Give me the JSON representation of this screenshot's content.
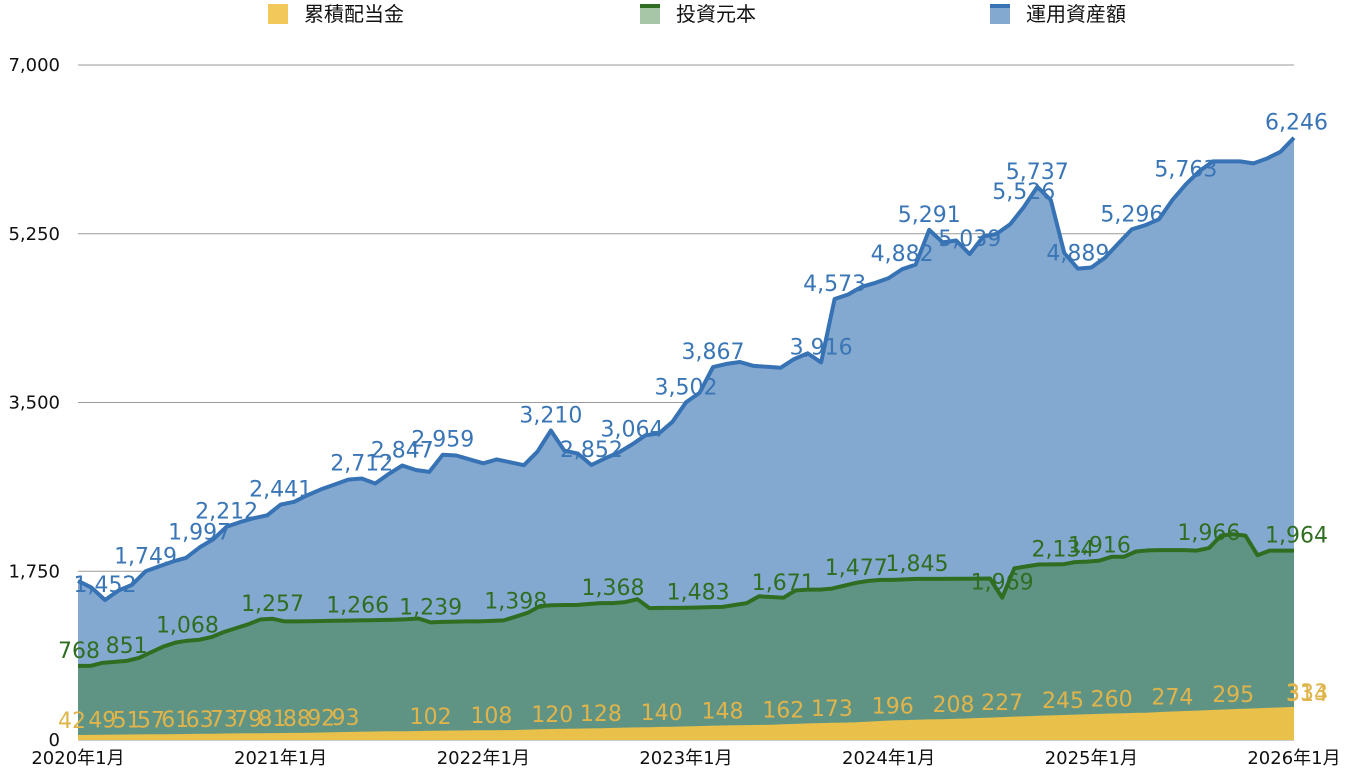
{
  "chart_data": {
    "type": "area",
    "x_ticks": [
      "2020年1月",
      "2021年1月",
      "2022年1月",
      "2023年1月",
      "2024年1月",
      "2025年1月",
      "2026年1月"
    ],
    "y_ticks": [
      "0",
      "1,750",
      "3,500",
      "5,250",
      "7,000"
    ],
    "ylim": [
      0,
      7000
    ],
    "legend": [
      "累積配当金",
      "投資元本",
      "運用資産額"
    ],
    "legend_position": "top",
    "colors": {
      "dividend_fill": "#E8C04A",
      "dividend_line": "#E8C04A",
      "dividend_label": "#E0B44A",
      "principal_fill": "#5F9485",
      "principal_line": "#2F6E21",
      "principal_label": "#2F6E21",
      "assets_fill": "#84A9D0",
      "assets_line": "#3672B4",
      "assets_label": "#3A75B5"
    },
    "series": [
      {
        "name": "累積配当金",
        "key": "dividend",
        "values": [
          42,
          43,
          45,
          46,
          47,
          48,
          49,
          50,
          51,
          52,
          54,
          55,
          57,
          58,
          59,
          60,
          61,
          62,
          63,
          65,
          67,
          70,
          73,
          75,
          77,
          79,
          80,
          81,
          83,
          85,
          87,
          88,
          89,
          90,
          91,
          92,
          93,
          97,
          102,
          104,
          106,
          108,
          110,
          112,
          115,
          118,
          120,
          122,
          125,
          128,
          131,
          134,
          137,
          140,
          142,
          144,
          146,
          148,
          152,
          157,
          162,
          165,
          168,
          170,
          173,
          180,
          187,
          193,
          196,
          200,
          203,
          205,
          208,
          213,
          218,
          222,
          227,
          232,
          236,
          241,
          245,
          249,
          253,
          256,
          260,
          264,
          268,
          271,
          274,
          280,
          285,
          290,
          295,
          300,
          305,
          310,
          314,
          319,
          324,
          328,
          333
        ],
        "labels": [
          {
            "i": 0,
            "t": "42"
          },
          {
            "i": 2,
            "t": "49"
          },
          {
            "i": 4,
            "t": "51"
          },
          {
            "i": 6,
            "t": "57"
          },
          {
            "i": 8,
            "t": "61"
          },
          {
            "i": 10,
            "t": "63"
          },
          {
            "i": 12,
            "t": "73"
          },
          {
            "i": 14,
            "t": "79"
          },
          {
            "i": 16,
            "t": "81"
          },
          {
            "i": 18,
            "t": "88"
          },
          {
            "i": 20,
            "t": "92"
          },
          {
            "i": 22,
            "t": "93"
          },
          {
            "i": 29,
            "t": "102"
          },
          {
            "i": 34,
            "t": "108"
          },
          {
            "i": 39,
            "t": "120"
          },
          {
            "i": 43,
            "t": "128"
          },
          {
            "i": 48,
            "t": "140"
          },
          {
            "i": 53,
            "t": "148"
          },
          {
            "i": 58,
            "t": "162"
          },
          {
            "i": 62,
            "t": "173"
          },
          {
            "i": 67,
            "t": "196"
          },
          {
            "i": 72,
            "t": "208"
          },
          {
            "i": 76,
            "t": "227"
          },
          {
            "i": 81,
            "t": "245"
          },
          {
            "i": 85,
            "t": "260"
          },
          {
            "i": 90,
            "t": "274"
          },
          {
            "i": 95,
            "t": "295"
          },
          {
            "i": 98,
            "t": "314"
          },
          {
            "i": 100,
            "t": "333"
          }
        ]
      },
      {
        "name": "投資元本",
        "key": "principal",
        "values": [
          768,
          768,
          800,
          810,
          820,
          851,
          910,
          968,
          1010,
          1030,
          1040,
          1068,
          1120,
          1160,
          1200,
          1250,
          1257,
          1230,
          1230,
          1232,
          1234,
          1236,
          1238,
          1240,
          1242,
          1244,
          1248,
          1252,
          1260,
          1220,
          1225,
          1228,
          1230,
          1230,
          1235,
          1240,
          1280,
          1320,
          1390,
          1398,
          1400,
          1400,
          1410,
          1420,
          1420,
          1430,
          1460,
          1368,
          1370,
          1370,
          1372,
          1374,
          1378,
          1380,
          1400,
          1420,
          1490,
          1483,
          1475,
          1550,
          1560,
          1560,
          1570,
          1600,
          1630,
          1650,
          1660,
          1660,
          1665,
          1671,
          1671,
          1671,
          1672,
          1673,
          1674,
          1675,
          1476,
          1780,
          1800,
          1820,
          1821,
          1822,
          1845,
          1850,
          1860,
          1900,
          1900,
          1955,
          1966,
          1969,
          1969,
          1969,
          1964,
          1990,
          2120,
          2134,
          2120,
          1916,
          1964,
          1964,
          1964
        ],
        "labels": [
          {
            "i": 0,
            "t": "768"
          },
          {
            "i": 4,
            "t": "851"
          },
          {
            "i": 9,
            "t": "1,068"
          },
          {
            "i": 16,
            "t": "1,257"
          },
          {
            "i": 23,
            "t": "1,266"
          },
          {
            "i": 29,
            "t": "1,239"
          },
          {
            "i": 36,
            "t": "1,398"
          },
          {
            "i": 44,
            "t": "1,368"
          },
          {
            "i": 51,
            "t": "1,483"
          },
          {
            "i": 58,
            "t": "1,671"
          },
          {
            "i": 64,
            "t": "1,477"
          },
          {
            "i": 69,
            "t": "1,845"
          },
          {
            "i": 76,
            "t": "1,969"
          },
          {
            "i": 81,
            "t": "2,134"
          },
          {
            "i": 84,
            "t": "1,916"
          },
          {
            "i": 93,
            "t": "1,966"
          },
          {
            "i": 100,
            "t": "1,964"
          }
        ]
      },
      {
        "name": "運用資産額",
        "key": "assets",
        "values": [
          1650,
          1580,
          1452,
          1550,
          1610,
          1749,
          1800,
          1850,
          1890,
          1997,
          2080,
          2212,
          2260,
          2300,
          2330,
          2441,
          2470,
          2540,
          2600,
          2650,
          2700,
          2712,
          2660,
          2760,
          2847,
          2800,
          2780,
          2959,
          2950,
          2910,
          2870,
          2910,
          2880,
          2850,
          2990,
          3210,
          3000,
          2970,
          2852,
          2920,
          2980,
          3064,
          3160,
          3180,
          3300,
          3502,
          3600,
          3867,
          3900,
          3920,
          3880,
          3870,
          3860,
          3950,
          4010,
          3916,
          4573,
          4620,
          4700,
          4740,
          4790,
          4882,
          4930,
          5291,
          5160,
          5180,
          5039,
          5220,
          5250,
          5350,
          5526,
          5737,
          5600,
          5050,
          4889,
          4900,
          5000,
          5150,
          5296,
          5340,
          5400,
          5600,
          5763,
          5900,
          6000,
          6000,
          6000,
          5980,
          6030,
          6100,
          6246
        ],
        "labels": [
          {
            "i": 2,
            "t": "1,452"
          },
          {
            "i": 5,
            "t": "1,749"
          },
          {
            "i": 9,
            "t": "1,997"
          },
          {
            "i": 11,
            "t": "2,212"
          },
          {
            "i": 15,
            "t": "2,441"
          },
          {
            "i": 21,
            "t": "2,712"
          },
          {
            "i": 24,
            "t": "2,847"
          },
          {
            "i": 27,
            "t": "2,959"
          },
          {
            "i": 35,
            "t": "3,210"
          },
          {
            "i": 38,
            "t": "2,852"
          },
          {
            "i": 41,
            "t": "3,064"
          },
          {
            "i": 45,
            "t": "3,502"
          },
          {
            "i": 47,
            "t": "3,867"
          },
          {
            "i": 55,
            "t": "3,916"
          },
          {
            "i": 56,
            "t": "4,573"
          },
          {
            "i": 61,
            "t": "4,882"
          },
          {
            "i": 63,
            "t": "5,291"
          },
          {
            "i": 66,
            "t": "5,039"
          },
          {
            "i": 70,
            "t": "5,526"
          },
          {
            "i": 71,
            "t": "5,737"
          },
          {
            "i": 74,
            "t": "4,889"
          },
          {
            "i": 78,
            "t": "5,296"
          },
          {
            "i": 82,
            "t": "5,763"
          },
          {
            "i": 90,
            "t": "6,246"
          }
        ]
      }
    ]
  }
}
